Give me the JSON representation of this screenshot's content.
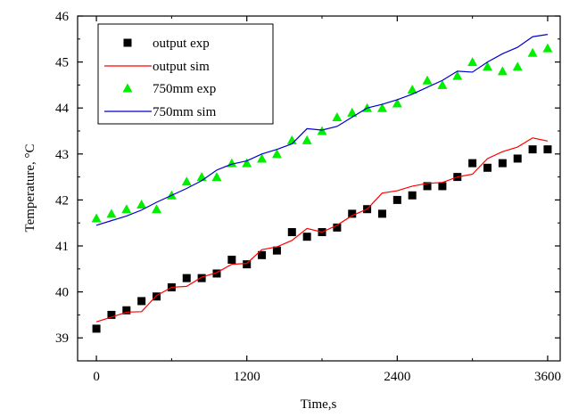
{
  "chart_data": {
    "type": "scatter",
    "xlabel": "Time,s",
    "ylabel": "Temperature, °C",
    "xlim": [
      -150,
      3700
    ],
    "ylim": [
      38.5,
      46
    ],
    "xticks": [
      0,
      1200,
      2400,
      3600
    ],
    "yticks": [
      39,
      40,
      41,
      42,
      43,
      44,
      45,
      46
    ],
    "grid": false,
    "legend_position": "top-left",
    "series": [
      {
        "name": "output exp",
        "kind": "scatter",
        "marker": "square",
        "color": "#000000",
        "x": [
          0,
          120,
          240,
          360,
          480,
          600,
          720,
          840,
          960,
          1080,
          1200,
          1320,
          1440,
          1560,
          1680,
          1800,
          1920,
          2040,
          2160,
          2280,
          2400,
          2520,
          2640,
          2760,
          2880,
          3000,
          3120,
          3240,
          3360,
          3480,
          3600
        ],
        "y": [
          39.2,
          39.5,
          39.6,
          39.8,
          39.9,
          40.1,
          40.3,
          40.3,
          40.4,
          40.7,
          40.6,
          40.8,
          40.9,
          41.3,
          41.2,
          41.3,
          41.4,
          41.7,
          41.8,
          41.7,
          42.0,
          42.1,
          42.3,
          42.3,
          42.5,
          42.8,
          42.7,
          42.8,
          42.9,
          43.1,
          43.1
        ]
      },
      {
        "name": "output sim",
        "kind": "line",
        "color": "#ff0000",
        "x": [
          0,
          120,
          240,
          360,
          480,
          600,
          720,
          840,
          960,
          1080,
          1200,
          1320,
          1440,
          1560,
          1680,
          1800,
          1920,
          2040,
          2160,
          2280,
          2400,
          2520,
          2640,
          2760,
          2880,
          3000,
          3120,
          3240,
          3360,
          3480,
          3600
        ],
        "y": [
          39.35,
          39.45,
          39.56,
          39.57,
          39.92,
          40.1,
          40.12,
          40.32,
          40.42,
          40.6,
          40.62,
          40.92,
          40.98,
          41.12,
          41.38,
          41.3,
          41.45,
          41.66,
          41.8,
          42.15,
          42.2,
          42.3,
          42.36,
          42.38,
          42.5,
          42.56,
          42.9,
          43.05,
          43.15,
          43.35,
          43.28
        ]
      },
      {
        "name": "750mm exp",
        "kind": "scatter",
        "marker": "triangle",
        "color": "#00ee00",
        "x": [
          0,
          120,
          240,
          360,
          480,
          600,
          720,
          840,
          960,
          1080,
          1200,
          1320,
          1440,
          1560,
          1680,
          1800,
          1920,
          2040,
          2160,
          2280,
          2400,
          2520,
          2640,
          2760,
          2880,
          3000,
          3120,
          3240,
          3360,
          3480,
          3600
        ],
        "y": [
          41.6,
          41.7,
          41.8,
          41.9,
          41.8,
          42.1,
          42.4,
          42.5,
          42.5,
          42.8,
          42.8,
          42.9,
          43.0,
          43.3,
          43.3,
          43.5,
          43.8,
          43.9,
          44.0,
          44.0,
          44.1,
          44.4,
          44.6,
          44.5,
          44.7,
          45.0,
          44.9,
          44.8,
          44.9,
          45.2,
          45.3
        ]
      },
      {
        "name": "750mm sim",
        "kind": "line",
        "color": "#0000cc",
        "x": [
          0,
          120,
          240,
          360,
          480,
          600,
          720,
          840,
          960,
          1080,
          1200,
          1320,
          1440,
          1560,
          1680,
          1800,
          1920,
          2040,
          2160,
          2280,
          2400,
          2520,
          2640,
          2760,
          2880,
          3000,
          3120,
          3240,
          3360,
          3480,
          3600
        ],
        "y": [
          41.45,
          41.55,
          41.65,
          41.78,
          41.95,
          42.1,
          42.25,
          42.42,
          42.65,
          42.78,
          42.85,
          43.0,
          43.1,
          43.22,
          43.55,
          43.52,
          43.6,
          43.8,
          44.0,
          44.08,
          44.18,
          44.3,
          44.45,
          44.6,
          44.8,
          44.78,
          45.0,
          45.18,
          45.32,
          45.55,
          45.6
        ]
      }
    ]
  }
}
